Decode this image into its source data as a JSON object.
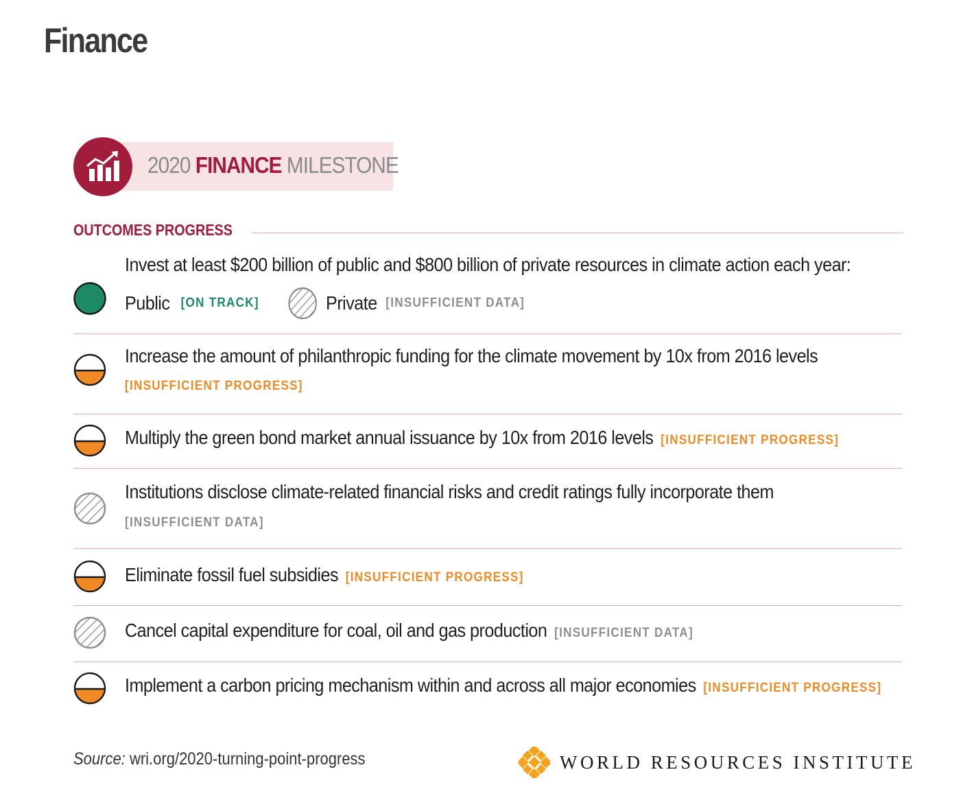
{
  "page_title": "Finance",
  "milestone": {
    "year": "2020",
    "emphasis": "FINANCE",
    "suffix": "MILESTONE",
    "icon": "growth-chart-icon"
  },
  "section": {
    "label": "OUTCOMES PROGRESS"
  },
  "colors": {
    "accent": "#a21c3b",
    "on_track": "#1d8a66",
    "insufficient_progress": "#f08a24",
    "insufficient_data": "#8e8e8e"
  },
  "outcomes": [
    {
      "text": "Invest at least $200 billion of public and $800 billion of private resources in climate action each year:",
      "sub": [
        {
          "label": "Public",
          "tag": "[ON TRACK]",
          "status": "on-track"
        },
        {
          "label": "Private",
          "tag": "[INSUFFICIENT DATA]",
          "status": "insufficient-data"
        }
      ]
    },
    {
      "text": "Increase the amount of philanthropic funding for the climate movement by 10x from 2016 levels",
      "tag": "[INSUFFICIENT PROGRESS]",
      "status": "insufficient-progress"
    },
    {
      "text": "Multiply the green bond market annual issuance by 10x from 2016 levels",
      "tag": "[INSUFFICIENT PROGRESS]",
      "status": "insufficient-progress"
    },
    {
      "text": "Institutions disclose climate-related financial risks and credit ratings fully incorporate them",
      "tag": "[INSUFFICIENT DATA]",
      "status": "insufficient-data"
    },
    {
      "text": "Eliminate fossil fuel subsidies",
      "tag": "[INSUFFICIENT PROGRESS]",
      "status": "insufficient-progress"
    },
    {
      "text": "Cancel capital expenditure for coal, oil and gas production",
      "tag": "[INSUFFICIENT DATA]",
      "status": "insufficient-data"
    },
    {
      "text": "Implement a carbon pricing mechanism within and across all major economies",
      "tag": "[INSUFFICIENT PROGRESS]",
      "status": "insufficient-progress"
    }
  ],
  "footer": {
    "source_label": "Source:",
    "source_url": "wri.org/2020-turning-point-progress",
    "logo_text": "WORLD RESOURCES INSTITUTE"
  }
}
